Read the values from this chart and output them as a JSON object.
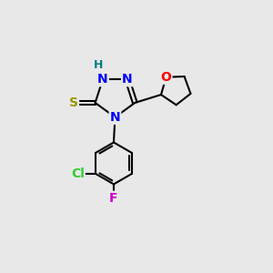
{
  "bg_color": "#e8e8e8",
  "atom_colors": {
    "N": "#0000ff",
    "O": "#ff0000",
    "S": "#999900",
    "Cl": "#33cc33",
    "F": "#cc00cc",
    "H": "#008080",
    "C": "#000000"
  },
  "font_size": 10,
  "bond_color": "#000000",
  "bond_width": 1.5
}
